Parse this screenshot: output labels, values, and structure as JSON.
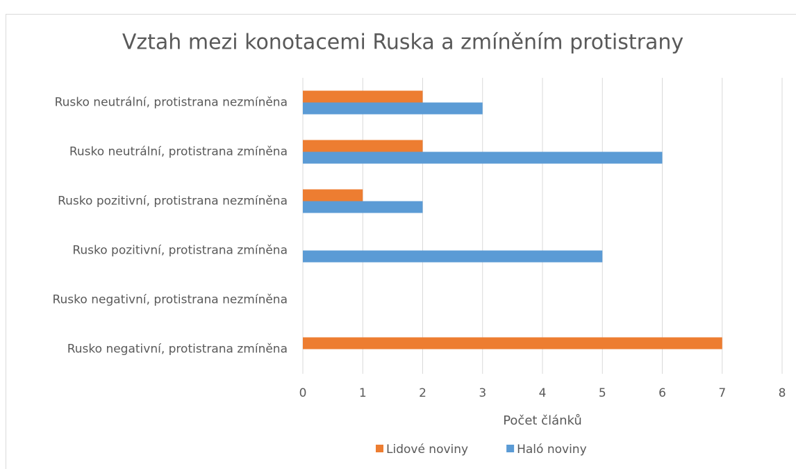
{
  "chart_data": {
    "type": "bar",
    "orientation": "horizontal",
    "title": "Vztah mezi konotacemi Ruska a zmíněním protistrany",
    "x_label": "Počet článků",
    "categories": [
      "Rusko neutrální, protistrana nezmíněna",
      "Rusko neutrální, protistrana zmíněna",
      "Rusko pozitivní, protistrana nezmíněna",
      "Rusko pozitivní, protistrana zmíněna",
      "Rusko negativní, protistrana nezmíněna",
      "Rusko negativní, protistrana zmíněna"
    ],
    "series": [
      {
        "name": "Lidové noviny",
        "color": "#ed7d31",
        "values": [
          2,
          2,
          1,
          0,
          0,
          7
        ]
      },
      {
        "name": "Haló noviny",
        "color": "#5b9bd5",
        "values": [
          3,
          6,
          2,
          5,
          0,
          0
        ]
      }
    ],
    "xlim": [
      0,
      8
    ],
    "xticks": [
      0,
      1,
      2,
      3,
      4,
      5,
      6,
      7,
      8
    ],
    "grid": true,
    "legend": "bottom"
  }
}
